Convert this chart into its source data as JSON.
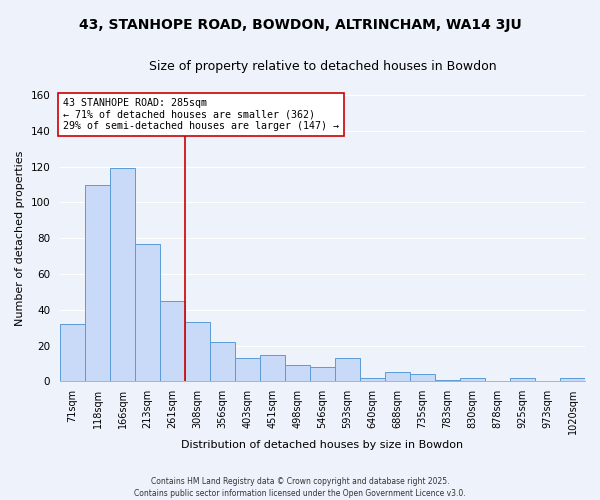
{
  "title": "43, STANHOPE ROAD, BOWDON, ALTRINCHAM, WA14 3JU",
  "subtitle": "Size of property relative to detached houses in Bowdon",
  "xlabel": "Distribution of detached houses by size in Bowdon",
  "ylabel": "Number of detached properties",
  "bar_labels": [
    "71sqm",
    "118sqm",
    "166sqm",
    "213sqm",
    "261sqm",
    "308sqm",
    "356sqm",
    "403sqm",
    "451sqm",
    "498sqm",
    "546sqm",
    "593sqm",
    "640sqm",
    "688sqm",
    "735sqm",
    "783sqm",
    "830sqm",
    "878sqm",
    "925sqm",
    "973sqm",
    "1020sqm"
  ],
  "bar_values": [
    32,
    110,
    119,
    77,
    45,
    33,
    22,
    13,
    15,
    9,
    8,
    13,
    2,
    5,
    4,
    1,
    2,
    0,
    2,
    0,
    2
  ],
  "bar_color": "#c9daf8",
  "bar_edge_color": "#5b9bd5",
  "vline_x_idx": 5,
  "vline_color": "#cc0000",
  "annotation_title": "43 STANHOPE ROAD: 285sqm",
  "annotation_line2": "← 71% of detached houses are smaller (362)",
  "annotation_line3": "29% of semi-detached houses are larger (147) →",
  "annotation_box_color": "#ffffff",
  "annotation_border_color": "#cc0000",
  "ylim": [
    0,
    160
  ],
  "yticks": [
    0,
    20,
    40,
    60,
    80,
    100,
    120,
    140,
    160
  ],
  "footer_line1": "Contains HM Land Registry data © Crown copyright and database right 2025.",
  "footer_line2": "Contains public sector information licensed under the Open Government Licence v3.0.",
  "bg_color": "#eef2fb",
  "grid_color": "#ffffff",
  "title_fontsize": 10,
  "subtitle_fontsize": 9,
  "annotation_fontsize": 7.2,
  "axis_label_fontsize": 8,
  "tick_fontsize": 7,
  "footer_fontsize": 5.5
}
